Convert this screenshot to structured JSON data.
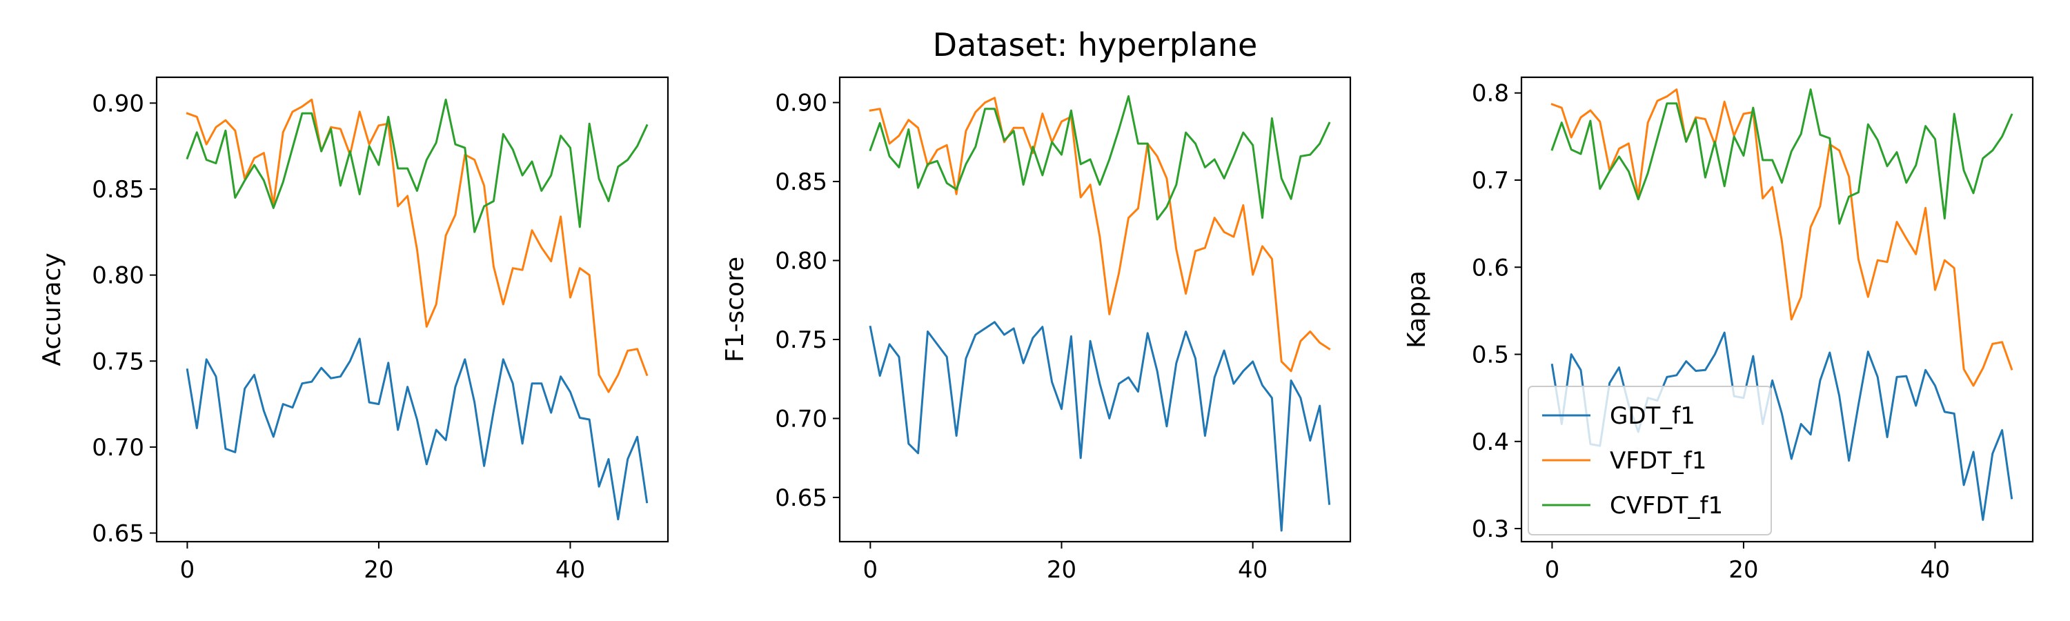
{
  "title": "Dataset: hyperplane",
  "colors": {
    "GDT_f1": "#1f77b4",
    "VFDT_f1": "#ff7f0e",
    "CVFDT_f1": "#2ca02c"
  },
  "chart_data": [
    {
      "type": "line",
      "ylabel": "Accuracy",
      "xlim": [
        -3.2,
        50.2
      ],
      "ylim": [
        0.645,
        0.915
      ],
      "xticks": [
        0,
        20,
        40
      ],
      "yticks": [
        0.65,
        0.7,
        0.75,
        0.8,
        0.85,
        0.9
      ],
      "ytick_labels": [
        "0.65",
        "0.70",
        "0.75",
        "0.80",
        "0.85",
        "0.90"
      ],
      "x": [
        0,
        1,
        2,
        3,
        4,
        5,
        6,
        7,
        8,
        9,
        10,
        11,
        12,
        13,
        14,
        15,
        16,
        17,
        18,
        19,
        20,
        21,
        22,
        23,
        24,
        25,
        26,
        27,
        28,
        29,
        30,
        31,
        32,
        33,
        34,
        35,
        36,
        37,
        38,
        39,
        40,
        41,
        42,
        43,
        44,
        45,
        46,
        47,
        48
      ],
      "series": [
        {
          "name": "GDT_f1",
          "values": [
            0.745,
            0.711,
            0.751,
            0.741,
            0.699,
            0.697,
            0.734,
            0.742,
            0.721,
            0.706,
            0.725,
            0.723,
            0.737,
            0.738,
            0.746,
            0.74,
            0.741,
            0.75,
            0.763,
            0.726,
            0.725,
            0.749,
            0.71,
            0.735,
            0.716,
            0.69,
            0.71,
            0.704,
            0.735,
            0.751,
            0.726,
            0.689,
            0.721,
            0.751,
            0.737,
            0.702,
            0.737,
            0.737,
            0.72,
            0.741,
            0.732,
            0.717,
            0.716,
            0.677,
            0.693,
            0.658,
            0.693,
            0.706,
            0.668
          ]
        },
        {
          "name": "VFDT_f1",
          "values": [
            0.894,
            0.892,
            0.876,
            0.886,
            0.89,
            0.884,
            0.856,
            0.868,
            0.871,
            0.841,
            0.883,
            0.895,
            0.898,
            0.902,
            0.872,
            0.886,
            0.885,
            0.87,
            0.895,
            0.876,
            0.887,
            0.888,
            0.84,
            0.846,
            0.815,
            0.77,
            0.783,
            0.823,
            0.835,
            0.87,
            0.867,
            0.852,
            0.805,
            0.783,
            0.804,
            0.803,
            0.826,
            0.816,
            0.808,
            0.834,
            0.787,
            0.804,
            0.8,
            0.742,
            0.732,
            0.742,
            0.756,
            0.757,
            0.742
          ]
        },
        {
          "name": "CVFDT_f1",
          "values": [
            0.868,
            0.883,
            0.867,
            0.865,
            0.884,
            0.845,
            0.855,
            0.864,
            0.855,
            0.839,
            0.854,
            0.874,
            0.894,
            0.894,
            0.872,
            0.885,
            0.852,
            0.872,
            0.847,
            0.875,
            0.864,
            0.892,
            0.862,
            0.862,
            0.849,
            0.867,
            0.877,
            0.902,
            0.876,
            0.874,
            0.825,
            0.84,
            0.843,
            0.882,
            0.873,
            0.858,
            0.866,
            0.849,
            0.858,
            0.881,
            0.874,
            0.828,
            0.888,
            0.856,
            0.843,
            0.863,
            0.867,
            0.875,
            0.887
          ]
        }
      ]
    },
    {
      "type": "line",
      "ylabel": "F1-score",
      "xlim": [
        -3.2,
        50.2
      ],
      "ylim": [
        0.622,
        0.916
      ],
      "xticks": [
        0,
        20,
        40
      ],
      "yticks": [
        0.65,
        0.7,
        0.75,
        0.8,
        0.85,
        0.9
      ],
      "ytick_labels": [
        "0.65",
        "0.70",
        "0.75",
        "0.80",
        "0.85",
        "0.90"
      ],
      "x": [
        0,
        1,
        2,
        3,
        4,
        5,
        6,
        7,
        8,
        9,
        10,
        11,
        12,
        13,
        14,
        15,
        16,
        17,
        18,
        19,
        20,
        21,
        22,
        23,
        24,
        25,
        26,
        27,
        28,
        29,
        30,
        31,
        32,
        33,
        34,
        35,
        36,
        37,
        38,
        39,
        40,
        41,
        42,
        43,
        44,
        45,
        46,
        47,
        48
      ],
      "series": [
        {
          "name": "GDT_f1",
          "values": [
            0.758,
            0.727,
            0.747,
            0.739,
            0.684,
            0.678,
            0.755,
            0.747,
            0.739,
            0.689,
            0.738,
            0.753,
            0.757,
            0.761,
            0.753,
            0.757,
            0.735,
            0.751,
            0.758,
            0.723,
            0.706,
            0.752,
            0.675,
            0.749,
            0.722,
            0.7,
            0.722,
            0.726,
            0.717,
            0.754,
            0.73,
            0.695,
            0.735,
            0.755,
            0.738,
            0.689,
            0.726,
            0.743,
            0.722,
            0.73,
            0.736,
            0.721,
            0.713,
            0.629,
            0.724,
            0.713,
            0.686,
            0.708,
            0.646
          ]
        },
        {
          "name": "VFDT_f1",
          "values": [
            0.895,
            0.896,
            0.874,
            0.879,
            0.889,
            0.884,
            0.86,
            0.87,
            0.873,
            0.842,
            0.882,
            0.894,
            0.9,
            0.903,
            0.875,
            0.884,
            0.884,
            0.868,
            0.893,
            0.875,
            0.888,
            0.891,
            0.84,
            0.848,
            0.815,
            0.766,
            0.792,
            0.827,
            0.833,
            0.874,
            0.866,
            0.852,
            0.807,
            0.779,
            0.806,
            0.808,
            0.827,
            0.818,
            0.815,
            0.835,
            0.791,
            0.809,
            0.801,
            0.736,
            0.73,
            0.749,
            0.755,
            0.748,
            0.744
          ]
        },
        {
          "name": "CVFDT_f1",
          "values": [
            0.87,
            0.887,
            0.866,
            0.859,
            0.883,
            0.846,
            0.861,
            0.863,
            0.849,
            0.845,
            0.861,
            0.872,
            0.896,
            0.896,
            0.876,
            0.882,
            0.848,
            0.872,
            0.854,
            0.875,
            0.867,
            0.895,
            0.861,
            0.864,
            0.848,
            0.864,
            0.883,
            0.904,
            0.874,
            0.874,
            0.826,
            0.834,
            0.848,
            0.881,
            0.874,
            0.859,
            0.864,
            0.852,
            0.866,
            0.881,
            0.873,
            0.827,
            0.89,
            0.852,
            0.839,
            0.866,
            0.867,
            0.874,
            0.887
          ]
        }
      ]
    },
    {
      "type": "line",
      "ylabel": "Kappa",
      "xlim": [
        -3.2,
        50.2
      ],
      "ylim": [
        0.285,
        0.818
      ],
      "xticks": [
        0,
        20,
        40
      ],
      "yticks": [
        0.3,
        0.4,
        0.5,
        0.6,
        0.7,
        0.8
      ],
      "ytick_labels": [
        "0.3",
        "0.4",
        "0.5",
        "0.6",
        "0.7",
        "0.8"
      ],
      "legend": {
        "loc": "lower-left",
        "entries": [
          "GDT_f1",
          "VFDT_f1",
          "CVFDT_f1"
        ]
      },
      "x": [
        0,
        1,
        2,
        3,
        4,
        5,
        6,
        7,
        8,
        9,
        10,
        11,
        12,
        13,
        14,
        15,
        16,
        17,
        18,
        19,
        20,
        21,
        22,
        23,
        24,
        25,
        26,
        27,
        28,
        29,
        30,
        31,
        32,
        33,
        34,
        35,
        36,
        37,
        38,
        39,
        40,
        41,
        42,
        43,
        44,
        45,
        46,
        47,
        48
      ],
      "series": [
        {
          "name": "GDT_f1",
          "values": [
            0.488,
            0.42,
            0.5,
            0.482,
            0.397,
            0.395,
            0.467,
            0.485,
            0.442,
            0.411,
            0.45,
            0.447,
            0.474,
            0.476,
            0.492,
            0.481,
            0.482,
            0.5,
            0.525,
            0.452,
            0.45,
            0.498,
            0.42,
            0.47,
            0.432,
            0.38,
            0.42,
            0.408,
            0.47,
            0.502,
            0.452,
            0.378,
            0.442,
            0.503,
            0.474,
            0.405,
            0.474,
            0.475,
            0.441,
            0.482,
            0.464,
            0.434,
            0.432,
            0.35,
            0.388,
            0.31,
            0.386,
            0.413,
            0.335
          ]
        },
        {
          "name": "VFDT_f1",
          "values": [
            0.787,
            0.783,
            0.749,
            0.772,
            0.78,
            0.767,
            0.711,
            0.736,
            0.742,
            0.681,
            0.766,
            0.791,
            0.796,
            0.804,
            0.744,
            0.772,
            0.77,
            0.741,
            0.79,
            0.751,
            0.776,
            0.778,
            0.679,
            0.692,
            0.63,
            0.54,
            0.566,
            0.646,
            0.67,
            0.741,
            0.734,
            0.704,
            0.609,
            0.566,
            0.608,
            0.606,
            0.652,
            0.633,
            0.615,
            0.668,
            0.574,
            0.608,
            0.599,
            0.483,
            0.464,
            0.484,
            0.512,
            0.514,
            0.483
          ]
        },
        {
          "name": "CVFDT_f1",
          "values": [
            0.735,
            0.766,
            0.735,
            0.73,
            0.768,
            0.69,
            0.71,
            0.727,
            0.71,
            0.678,
            0.708,
            0.748,
            0.788,
            0.788,
            0.744,
            0.77,
            0.703,
            0.744,
            0.693,
            0.75,
            0.728,
            0.783,
            0.723,
            0.723,
            0.697,
            0.733,
            0.753,
            0.804,
            0.752,
            0.748,
            0.65,
            0.681,
            0.686,
            0.764,
            0.746,
            0.716,
            0.732,
            0.697,
            0.717,
            0.762,
            0.747,
            0.656,
            0.776,
            0.711,
            0.685,
            0.725,
            0.734,
            0.75,
            0.775
          ]
        }
      ]
    }
  ]
}
